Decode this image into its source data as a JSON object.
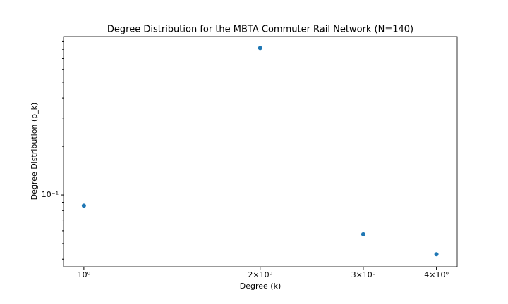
{
  "chart_data": {
    "type": "scatter",
    "title": "Degree Distribution for the MBTA Commuter Rail Network (N=140)",
    "xlabel": "Degree (k)",
    "ylabel": "Degree Distribution (p_k)",
    "x": [
      1,
      2,
      3,
      4
    ],
    "series": [
      {
        "name": "p_k",
        "color": "#1f77b4",
        "values": [
          0.0857,
          0.8143,
          0.0571,
          0.0429
        ]
      }
    ],
    "xscale": "log",
    "yscale": "log",
    "xlim": [
      0.923,
      4.34
    ],
    "ylim": [
      0.0359,
      0.96
    ],
    "xticks": [
      {
        "value": 1,
        "label": "10⁰"
      },
      {
        "value": 2,
        "label": "2×10⁰"
      },
      {
        "value": 3,
        "label": "3×10⁰"
      },
      {
        "value": 4,
        "label": "4×10⁰"
      }
    ],
    "yticks": [
      {
        "value": 0.1,
        "label": "10⁻¹"
      }
    ],
    "yminorticks": [
      0.04,
      0.05,
      0.06,
      0.07,
      0.08,
      0.09,
      0.2,
      0.3,
      0.4,
      0.5,
      0.6,
      0.7,
      0.8,
      0.9
    ],
    "grid": false
  }
}
